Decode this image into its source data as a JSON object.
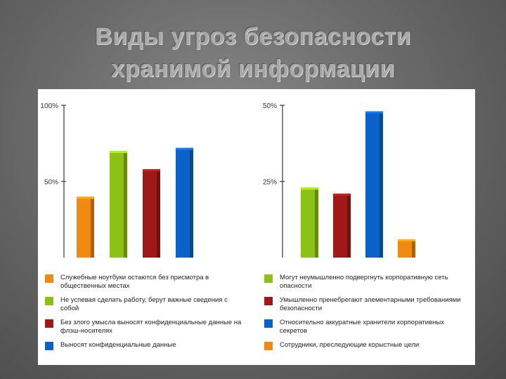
{
  "title": {
    "line1": "Виды угроз безопасности",
    "line2": "хранимой информации"
  },
  "colors": {
    "orange": "#f08a10",
    "green": "#8cc215",
    "red": "#a01818",
    "blue": "#0a62c8"
  },
  "chart_data": [
    {
      "type": "bar",
      "ylim": [
        0,
        100
      ],
      "ytick_labels": [
        "100%",
        "50%"
      ],
      "ytick_values": [
        100,
        50
      ],
      "series": [
        {
          "legend": "Служебные ноутбуки остаются без присмотра в общественных местах",
          "value": 40,
          "color": "#f08a10"
        },
        {
          "legend": "Не успевая сделать работу, берут важные сведения с собой",
          "value": 70,
          "color": "#8cc215"
        },
        {
          "legend": "Без злого умысла выносят конфиденциальные данные на флэш-носителях",
          "value": 58,
          "color": "#a01818"
        },
        {
          "legend": "Выносят конфиденциальные данные",
          "value": 72,
          "color": "#0a62c8"
        }
      ]
    },
    {
      "type": "bar",
      "ylim": [
        0,
        50
      ],
      "ytick_labels": [
        "50%",
        "25%"
      ],
      "ytick_values": [
        50,
        25
      ],
      "series": [
        {
          "legend": "Могут неумышленно подвергнуть корпоративную сеть опасности",
          "value": 23,
          "color": "#8cc215"
        },
        {
          "legend": "Умышленно пренебрегают элементарными требованиями безопасности",
          "value": 21,
          "color": "#a01818"
        },
        {
          "legend": "Относительно аккуратные хранители корпоративных секретов",
          "value": 48,
          "color": "#0a62c8"
        },
        {
          "legend": "Сотрудники, преследующие корыстные цели",
          "value": 6,
          "color": "#f08a10"
        }
      ]
    }
  ]
}
